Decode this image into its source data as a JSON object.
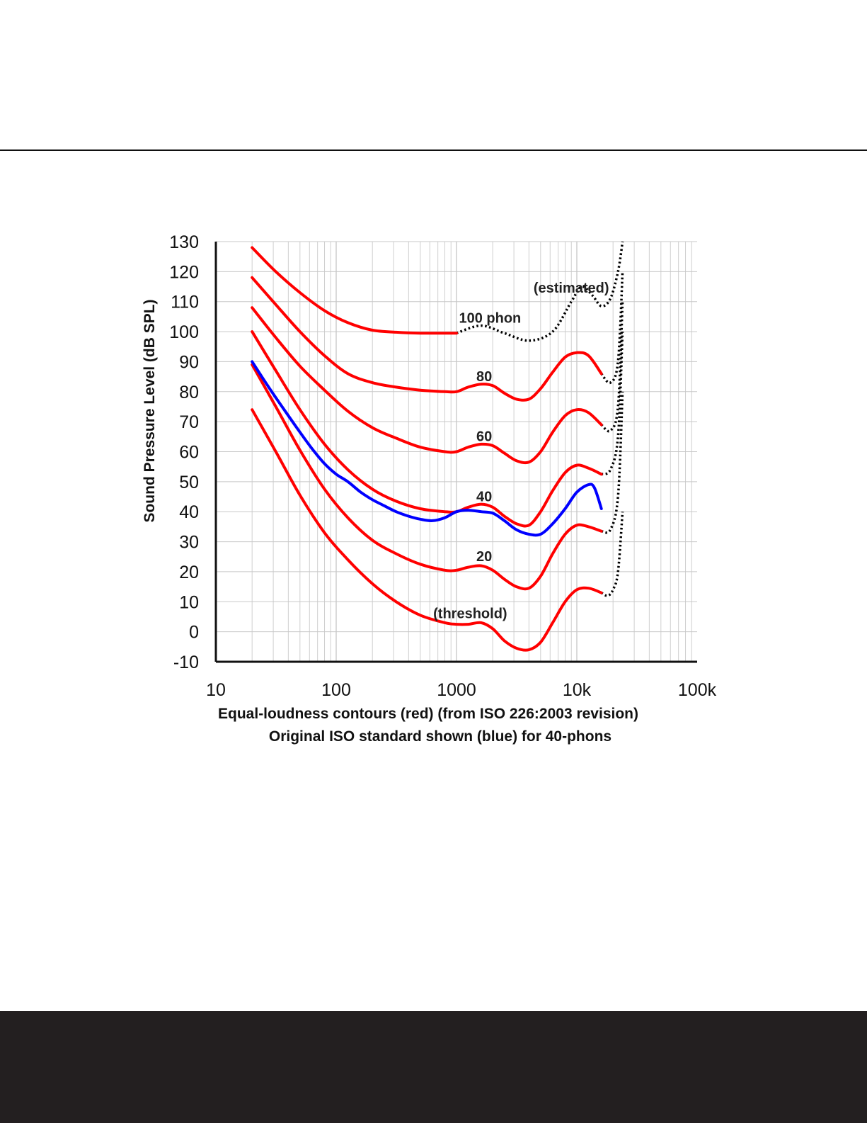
{
  "chart_data": {
    "type": "line",
    "x_scale": "log",
    "xlim": [
      10,
      100000
    ],
    "ylim": [
      -10,
      130
    ],
    "grid": true,
    "ylabel": "Sound Pressure Level (dB SPL)",
    "caption_line1": "Equal-loudness contours (red) (from ISO 226:2003 revision)",
    "caption_line2": "Original ISO standard shown (blue) for 40-phons",
    "x_ticks": [
      10,
      100,
      1000,
      10000,
      100000
    ],
    "x_tick_labels": [
      "10",
      "100",
      "1000",
      "10k",
      "100k"
    ],
    "y_ticks": [
      130,
      120,
      110,
      100,
      90,
      80,
      70,
      60,
      50,
      40,
      30,
      20,
      10,
      0,
      -10
    ],
    "y_tick_labels": [
      "130",
      "120",
      "110",
      "100",
      "90",
      "80",
      "70",
      "60",
      "50",
      "40",
      "30",
      "20",
      "10",
      "0",
      "-10"
    ],
    "colors": {
      "red": "#ff0000",
      "blue": "#0000ff",
      "estimated": "#000000"
    },
    "series": [
      {
        "label": "100 phon",
        "color": "#ff0000",
        "x": [
          20,
          31.5,
          50,
          80,
          125,
          200,
          315,
          500,
          800,
          1000
        ],
        "y": [
          128,
          120,
          113,
          107,
          103,
          100.5,
          99.8,
          99.5,
          99.5,
          99.5
        ],
        "estimated": {
          "x": [
            1000,
            1600,
            2500,
            4000,
            6300,
            9000,
            11000,
            13500,
            16000,
            19000,
            22000,
            24000
          ],
          "y": [
            99.5,
            102,
            99.5,
            97,
            100,
            110,
            115,
            112,
            108.5,
            111,
            120,
            130
          ]
        }
      },
      {
        "label": "80",
        "color": "#ff0000",
        "x": [
          20,
          31.5,
          50,
          80,
          125,
          200,
          315,
          500,
          800,
          1000,
          1250,
          1600,
          2000,
          2500,
          3150,
          4000,
          5000,
          6300,
          8000,
          10000,
          12500,
          16000
        ],
        "y": [
          118,
          109,
          100,
          92,
          86,
          83,
          81.5,
          80.5,
          80,
          80,
          81.5,
          82.5,
          82,
          79.5,
          77.5,
          77.5,
          81,
          86.5,
          91.5,
          93,
          92,
          86
        ],
        "estimated": {
          "x": [
            16000,
            19000,
            22000,
            24000
          ],
          "y": [
            86,
            83,
            90,
            120
          ]
        }
      },
      {
        "label": "60",
        "color": "#ff0000",
        "x": [
          20,
          31.5,
          50,
          80,
          125,
          200,
          315,
          500,
          800,
          1000,
          1250,
          1600,
          2000,
          2500,
          3150,
          4000,
          5000,
          6300,
          8000,
          10000,
          12500,
          16000
        ],
        "y": [
          108,
          98,
          88.5,
          80.5,
          73.5,
          68,
          64.5,
          61.5,
          60,
          60,
          61.5,
          62.5,
          62,
          59.5,
          57,
          56.5,
          60,
          66.5,
          72,
          74,
          73,
          69
        ],
        "estimated": {
          "x": [
            16000,
            19000,
            22000,
            24000
          ],
          "y": [
            69,
            67,
            75,
            110
          ]
        }
      },
      {
        "label": "40",
        "color": "#ff0000",
        "x": [
          20,
          31.5,
          50,
          80,
          125,
          200,
          315,
          500,
          800,
          1000,
          1250,
          1600,
          2000,
          2500,
          3150,
          4000,
          5000,
          6300,
          8000,
          10000,
          12500,
          16000
        ],
        "y": [
          100,
          87,
          74,
          62.5,
          54,
          47.5,
          43.5,
          41,
          40,
          40,
          41.5,
          42.5,
          41.5,
          38.5,
          36,
          35.5,
          40,
          47,
          53,
          55.5,
          54.5,
          52.5
        ],
        "estimated": {
          "x": [
            16000,
            19000,
            22000,
            24000
          ],
          "y": [
            52.5,
            54,
            65,
            100
          ]
        }
      },
      {
        "label": "20",
        "color": "#ff0000",
        "x": [
          20,
          31.5,
          50,
          80,
          125,
          200,
          315,
          500,
          800,
          1000,
          1250,
          1600,
          2000,
          2500,
          3150,
          4000,
          5000,
          6300,
          8000,
          10000,
          12500,
          16000
        ],
        "y": [
          89,
          75,
          60.5,
          47.5,
          38,
          30.5,
          26,
          22.5,
          20.5,
          20.5,
          21.5,
          22,
          20.5,
          17.5,
          15,
          14.5,
          18.5,
          26,
          32.5,
          35.5,
          35,
          33.5
        ],
        "estimated": {
          "x": [
            16000,
            19000,
            22000,
            24000
          ],
          "y": [
            33.5,
            34,
            45,
            80
          ]
        }
      },
      {
        "label": "(threshold)",
        "color": "#ff0000",
        "x": [
          20,
          31.5,
          50,
          80,
          125,
          200,
          315,
          500,
          800,
          1000,
          1250,
          1600,
          2000,
          2500,
          3150,
          4000,
          5000,
          6300,
          8000,
          10000,
          12500,
          16000
        ],
        "y": [
          74,
          60,
          45.5,
          33,
          24,
          16,
          10,
          5.5,
          3,
          2.5,
          2.5,
          3,
          1,
          -3,
          -5.5,
          -6,
          -3.5,
          3,
          10,
          14,
          14.5,
          13
        ],
        "estimated": {
          "x": [
            16000,
            18000,
            20000,
            22000,
            24000
          ],
          "y": [
            13,
            12,
            14,
            20,
            40
          ]
        }
      },
      {
        "label": "",
        "color": "#0000ff",
        "x": [
          20,
          25,
          31.5,
          40,
          50,
          63,
          80,
          100,
          125,
          160,
          200,
          250,
          315,
          400,
          500,
          630,
          800,
          1000,
          1250,
          1600,
          2000,
          2500,
          3150,
          4000,
          5000,
          6300,
          8000,
          10000,
          12500,
          14000,
          16000
        ],
        "y": [
          90,
          84,
          78,
          72,
          66.5,
          61,
          56,
          52.5,
          50,
          46.5,
          44,
          42,
          40,
          38.5,
          37.5,
          37,
          38,
          40,
          40.5,
          40,
          39.5,
          37,
          34,
          32.5,
          32.5,
          36,
          41,
          46.5,
          49,
          48,
          41
        ]
      }
    ],
    "annotations": [
      {
        "text": "(estimated)",
        "freq": 9000,
        "db": 113
      },
      {
        "text": "100 phon",
        "freq": 1900,
        "db": 103
      },
      {
        "text": "80",
        "freq": 1700,
        "db": 83.5
      },
      {
        "text": "60",
        "freq": 1700,
        "db": 63.5
      },
      {
        "text": "40",
        "freq": 1700,
        "db": 43.5
      },
      {
        "text": "20",
        "freq": 1700,
        "db": 23.5
      },
      {
        "text": "(threshold)",
        "freq": 1300,
        "db": 4.5
      }
    ]
  }
}
